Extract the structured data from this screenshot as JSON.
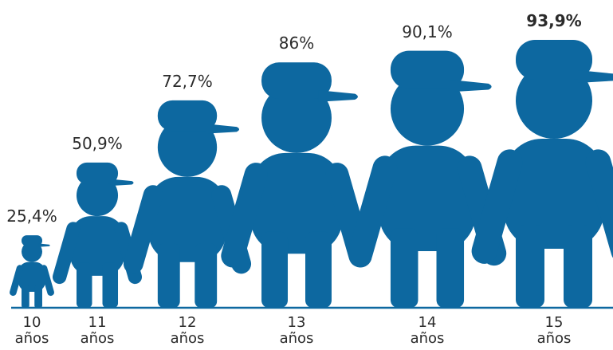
{
  "chart_data": {
    "type": "bar",
    "categories": [
      {
        "num": "10",
        "unit": "años"
      },
      {
        "num": "11",
        "unit": "años"
      },
      {
        "num": "12",
        "unit": "años"
      },
      {
        "num": "13",
        "unit": "años"
      },
      {
        "num": "14",
        "unit": "años"
      },
      {
        "num": "15",
        "unit": "años"
      }
    ],
    "values": [
      25.4,
      50.9,
      72.7,
      86,
      90.1,
      93.9
    ],
    "labels": [
      "25,4%",
      "50,9%",
      "72,7%",
      "86%",
      "90,1%",
      "93,9%"
    ],
    "highlight_index": 5,
    "ylim": [
      0,
      100
    ],
    "colors": {
      "figure": "#0d68a0",
      "baseline": "#0d68a0",
      "text": "#2b2b2b"
    }
  }
}
